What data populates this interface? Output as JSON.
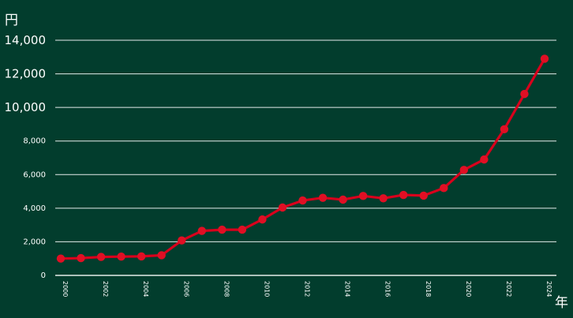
{
  "colors": {
    "background": "#023d2d",
    "line": "#d8001c",
    "marker": "#e10f24",
    "grid": "#ffffff",
    "text": "#ffffff"
  },
  "chart_data": {
    "type": "line",
    "y_unit": "円",
    "x_unit": "年",
    "ylim": [
      0,
      14000
    ],
    "xlim": [
      2000,
      2024
    ],
    "grid": true,
    "yticks": [
      0,
      2000,
      4000,
      6000,
      8000,
      10000,
      12000,
      14000
    ],
    "ytick_labels": [
      "0",
      "2,000",
      "4,000",
      "6,000",
      "8,000",
      "10,000",
      "12,000",
      "14,000"
    ],
    "xticks": [
      2000,
      2002,
      2004,
      2006,
      2008,
      2010,
      2012,
      2014,
      2016,
      2018,
      2020,
      2022,
      2024
    ],
    "xtick_labels": [
      "2000",
      "2002",
      "2004",
      "2006",
      "2008",
      "2010",
      "2012",
      "2014",
      "2016",
      "2018",
      "2020",
      "2022",
      "2024"
    ],
    "x": [
      2000,
      2001,
      2002,
      2003,
      2004,
      2005,
      2006,
      2007,
      2008,
      2009,
      2010,
      2011,
      2012,
      2013,
      2014,
      2015,
      2016,
      2017,
      2018,
      2019,
      2020,
      2021,
      2022,
      2023,
      2024
    ],
    "series": [
      {
        "values": [
          1000,
          1030,
          1100,
          1120,
          1130,
          1200,
          2080,
          2650,
          2720,
          2720,
          3330,
          4040,
          4460,
          4620,
          4510,
          4730,
          4590,
          4790,
          4750,
          5200,
          6280,
          6900,
          8700,
          10800,
          12900
        ]
      }
    ]
  }
}
